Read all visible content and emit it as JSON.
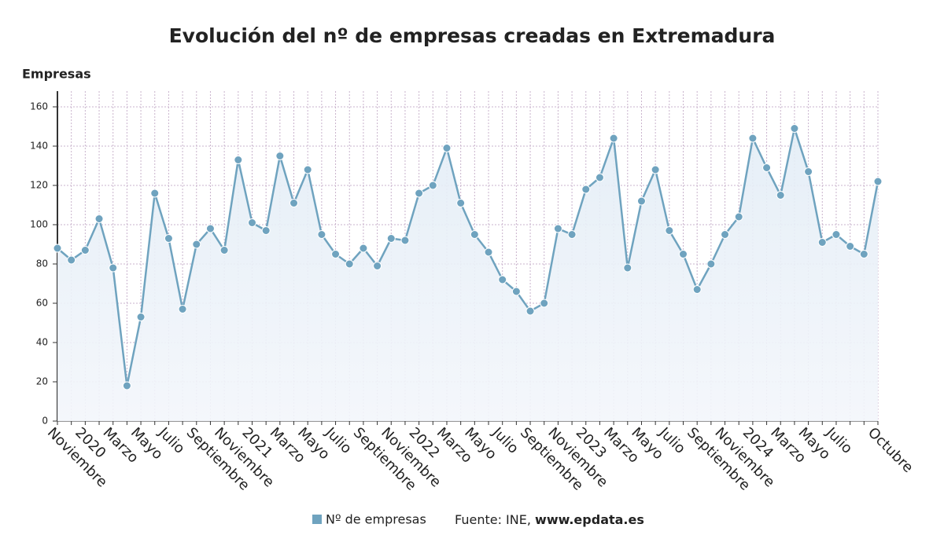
{
  "chart_data": {
    "type": "line",
    "title": "Evolución del nº de empresas creadas en Extremadura",
    "y_label": "Empresas",
    "categories": [
      "Noviembre",
      null,
      "2020",
      null,
      "Marzo",
      null,
      "Mayo",
      null,
      "Julio",
      null,
      "Septiembre",
      null,
      "Noviembre",
      null,
      "2021",
      null,
      "Marzo",
      null,
      "Mayo",
      null,
      "Julio",
      null,
      "Septiembre",
      null,
      "Noviembre",
      null,
      "2022",
      null,
      "Marzo",
      null,
      "Mayo",
      null,
      "Julio",
      null,
      "Septiembre",
      null,
      "Noviembre",
      null,
      "2023",
      null,
      "Marzo",
      null,
      "Mayo",
      null,
      "Julio",
      null,
      "Septiembre",
      null,
      "Noviembre",
      null,
      "2024",
      null,
      "Marzo",
      null,
      "Mayo",
      null,
      "Julio",
      null,
      null,
      "Octubre"
    ],
    "series": [
      {
        "name": "Nº de empresas",
        "color": "#6fa3bf",
        "values": [
          88,
          82,
          87,
          103,
          78,
          18,
          53,
          116,
          93,
          57,
          90,
          98,
          87,
          133,
          101,
          97,
          135,
          111,
          128,
          95,
          85,
          80,
          88,
          79,
          93,
          92,
          116,
          120,
          139,
          111,
          95,
          86,
          72,
          66,
          56,
          60,
          98,
          95,
          118,
          124,
          144,
          78,
          112,
          128,
          97,
          85,
          67,
          80,
          95,
          104,
          144,
          129,
          115,
          149,
          127,
          91,
          95,
          89,
          85,
          122
        ]
      }
    ],
    "ylim": [
      0,
      168
    ],
    "yticks": [
      0,
      20,
      40,
      60,
      80,
      100,
      120,
      140,
      160
    ],
    "grid": true,
    "source": "Fuente: INE,",
    "source_site": "www.epdata.es"
  }
}
